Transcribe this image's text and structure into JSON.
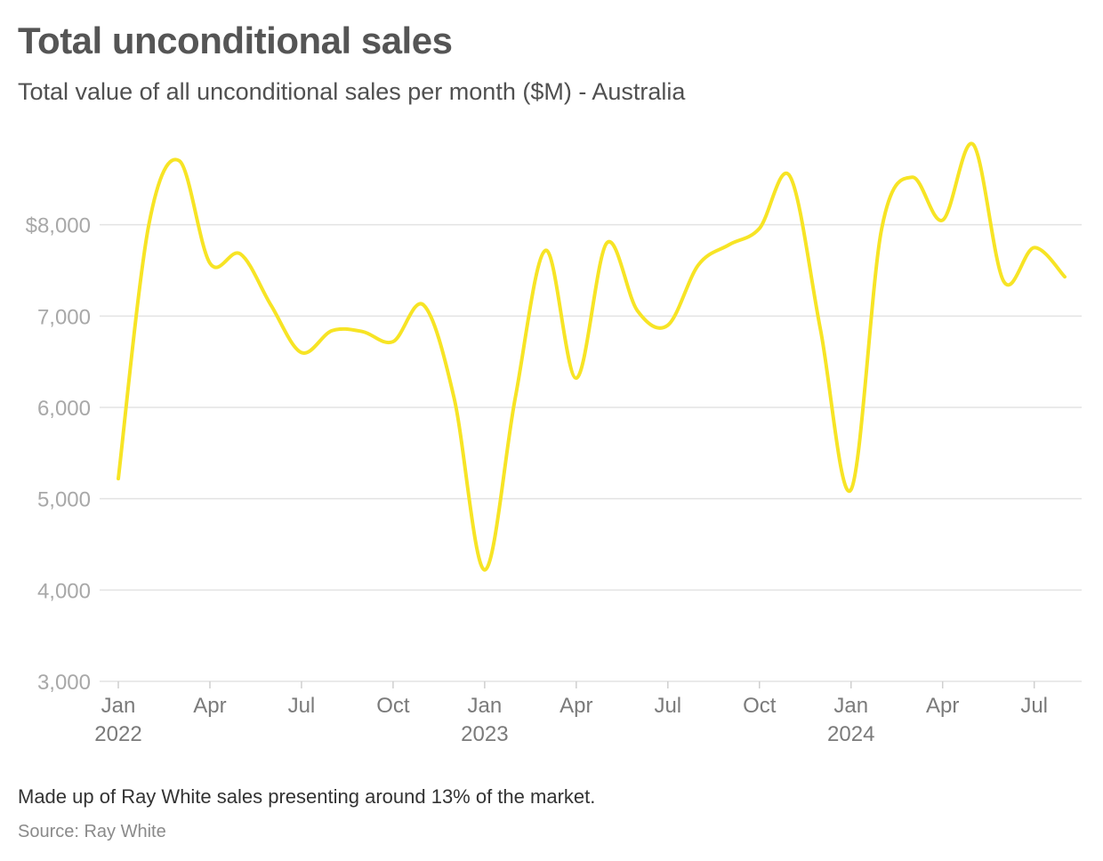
{
  "header": {
    "title": "Total unconditional sales",
    "subtitle": "Total value of all unconditional sales per month ($M) - Australia"
  },
  "footer": {
    "note": "Made up of Ray White sales presenting around 13% of the market.",
    "source": "Source: Ray White"
  },
  "colors": {
    "line": "#f7e425",
    "grid": "#e3e3e3",
    "title": "#555555"
  },
  "chart_data": {
    "type": "line",
    "title": "Total unconditional sales",
    "subtitle": "Total value of all unconditional sales per month ($M) - Australia",
    "xlabel": "",
    "ylabel": "",
    "ylim": [
      3000,
      9000
    ],
    "grid": true,
    "yticks": [
      {
        "value": 3000,
        "label": "3,000"
      },
      {
        "value": 4000,
        "label": "4,000"
      },
      {
        "value": 5000,
        "label": "5,000"
      },
      {
        "value": 6000,
        "label": "6,000"
      },
      {
        "value": 7000,
        "label": "7,000"
      },
      {
        "value": 8000,
        "label": "$8,000"
      }
    ],
    "xticks": [
      {
        "index": 0,
        "month": "Jan",
        "year": "2022"
      },
      {
        "index": 3,
        "month": "Apr",
        "year": ""
      },
      {
        "index": 6,
        "month": "Jul",
        "year": ""
      },
      {
        "index": 9,
        "month": "Oct",
        "year": ""
      },
      {
        "index": 12,
        "month": "Jan",
        "year": "2023"
      },
      {
        "index": 15,
        "month": "Apr",
        "year": ""
      },
      {
        "index": 18,
        "month": "Jul",
        "year": ""
      },
      {
        "index": 21,
        "month": "Oct",
        "year": ""
      },
      {
        "index": 24,
        "month": "Jan",
        "year": "2024"
      },
      {
        "index": 27,
        "month": "Apr",
        "year": ""
      },
      {
        "index": 30,
        "month": "Jul",
        "year": ""
      }
    ],
    "x": [
      "2022-01",
      "2022-02",
      "2022-03",
      "2022-04",
      "2022-05",
      "2022-06",
      "2022-07",
      "2022-08",
      "2022-09",
      "2022-10",
      "2022-11",
      "2022-12",
      "2023-01",
      "2023-02",
      "2023-03",
      "2023-04",
      "2023-05",
      "2023-06",
      "2023-07",
      "2023-08",
      "2023-09",
      "2023-10",
      "2023-11",
      "2023-12",
      "2024-01",
      "2024-02",
      "2024-03",
      "2024-04",
      "2024-05",
      "2024-06",
      "2024-07",
      "2024-08"
    ],
    "series": [
      {
        "name": "Total unconditional sales ($M)",
        "values": [
          5220,
          8000,
          8700,
          7580,
          7680,
          7120,
          6600,
          6840,
          6830,
          6720,
          7120,
          6100,
          4220,
          6100,
          7720,
          6320,
          7800,
          7060,
          6900,
          7560,
          7780,
          7960,
          8530,
          6850,
          5100,
          7950,
          8520,
          8050,
          8880,
          7380,
          7750,
          7430
        ]
      }
    ]
  }
}
